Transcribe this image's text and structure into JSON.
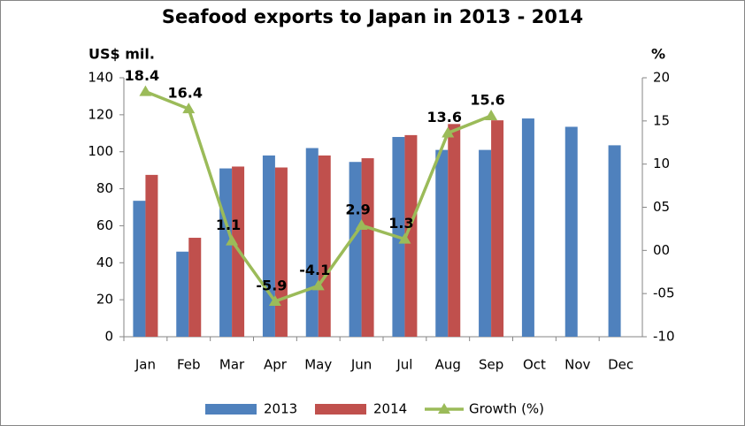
{
  "chart_data": {
    "type": "bar_line",
    "title": "Seafood exports to Japan in 2013 - 2014",
    "y_label": "US$ mil.",
    "y2_label": "%",
    "categories": [
      "Jan",
      "Feb",
      "Mar",
      "Apr",
      "May",
      "Jun",
      "Jul",
      "Aug",
      "Sep",
      "Oct",
      "Nov",
      "Dec"
    ],
    "series": [
      {
        "name": "2013",
        "type": "bar",
        "color": "#4f81bd",
        "values": [
          73.5,
          46,
          91,
          98,
          102,
          94.5,
          108,
          101,
          101,
          118,
          113.5,
          103.5
        ]
      },
      {
        "name": "2014",
        "type": "bar",
        "color": "#c0504d",
        "values": [
          87.5,
          53.5,
          92,
          91.5,
          98,
          96.5,
          109,
          115,
          117,
          null,
          null,
          null
        ]
      },
      {
        "name": "Growth (%)",
        "type": "line",
        "axis": "y2",
        "color": "#9bbb59",
        "values": [
          18.4,
          16.4,
          1.1,
          -5.9,
          -4.1,
          2.9,
          1.3,
          13.6,
          15.6,
          null,
          null,
          null
        ]
      }
    ],
    "ylim": [
      0,
      140
    ],
    "yticks": [
      0,
      20,
      40,
      60,
      80,
      100,
      120,
      140
    ],
    "y2lim": [
      -10,
      20
    ],
    "y2ticks": [
      {
        "value": -10,
        "label": "-10"
      },
      {
        "value": -5,
        "label": "-05"
      },
      {
        "value": 0,
        "label": "00"
      },
      {
        "value": 5,
        "label": "05"
      },
      10,
      15,
      20
    ],
    "grid": false,
    "legend": "bottom"
  }
}
